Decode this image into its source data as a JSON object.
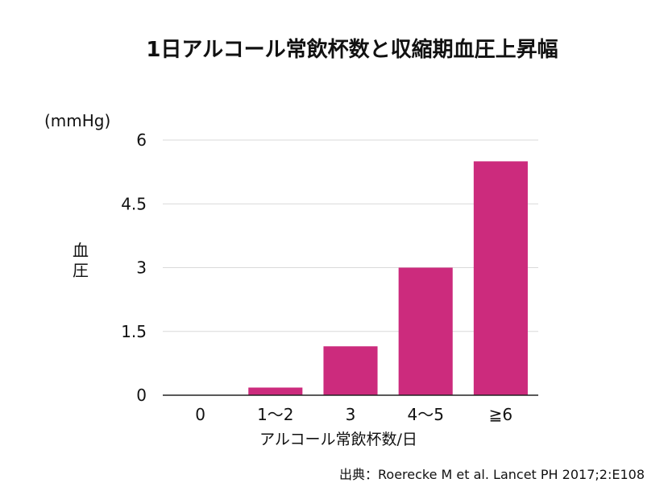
{
  "chart_data": {
    "type": "bar",
    "title": "1日アルコール常飲杯数と収縮期血圧上昇幅",
    "unit_label": "(mmHg)",
    "ylabel": "血圧",
    "xlabel": "アルコール常飲杯数/日",
    "categories": [
      "0",
      "1〜2",
      "3",
      "4〜5",
      "≧6"
    ],
    "values": [
      0,
      0.18,
      1.15,
      3.0,
      5.5
    ],
    "yticks": [
      "0",
      "1.5",
      "3",
      "4.5",
      "6"
    ],
    "ylim": [
      0,
      6
    ],
    "grid": true,
    "bar_color": "#cc2b7d",
    "source": "出典：Roerecke M et al. Lancet PH 2017;2:E108"
  }
}
